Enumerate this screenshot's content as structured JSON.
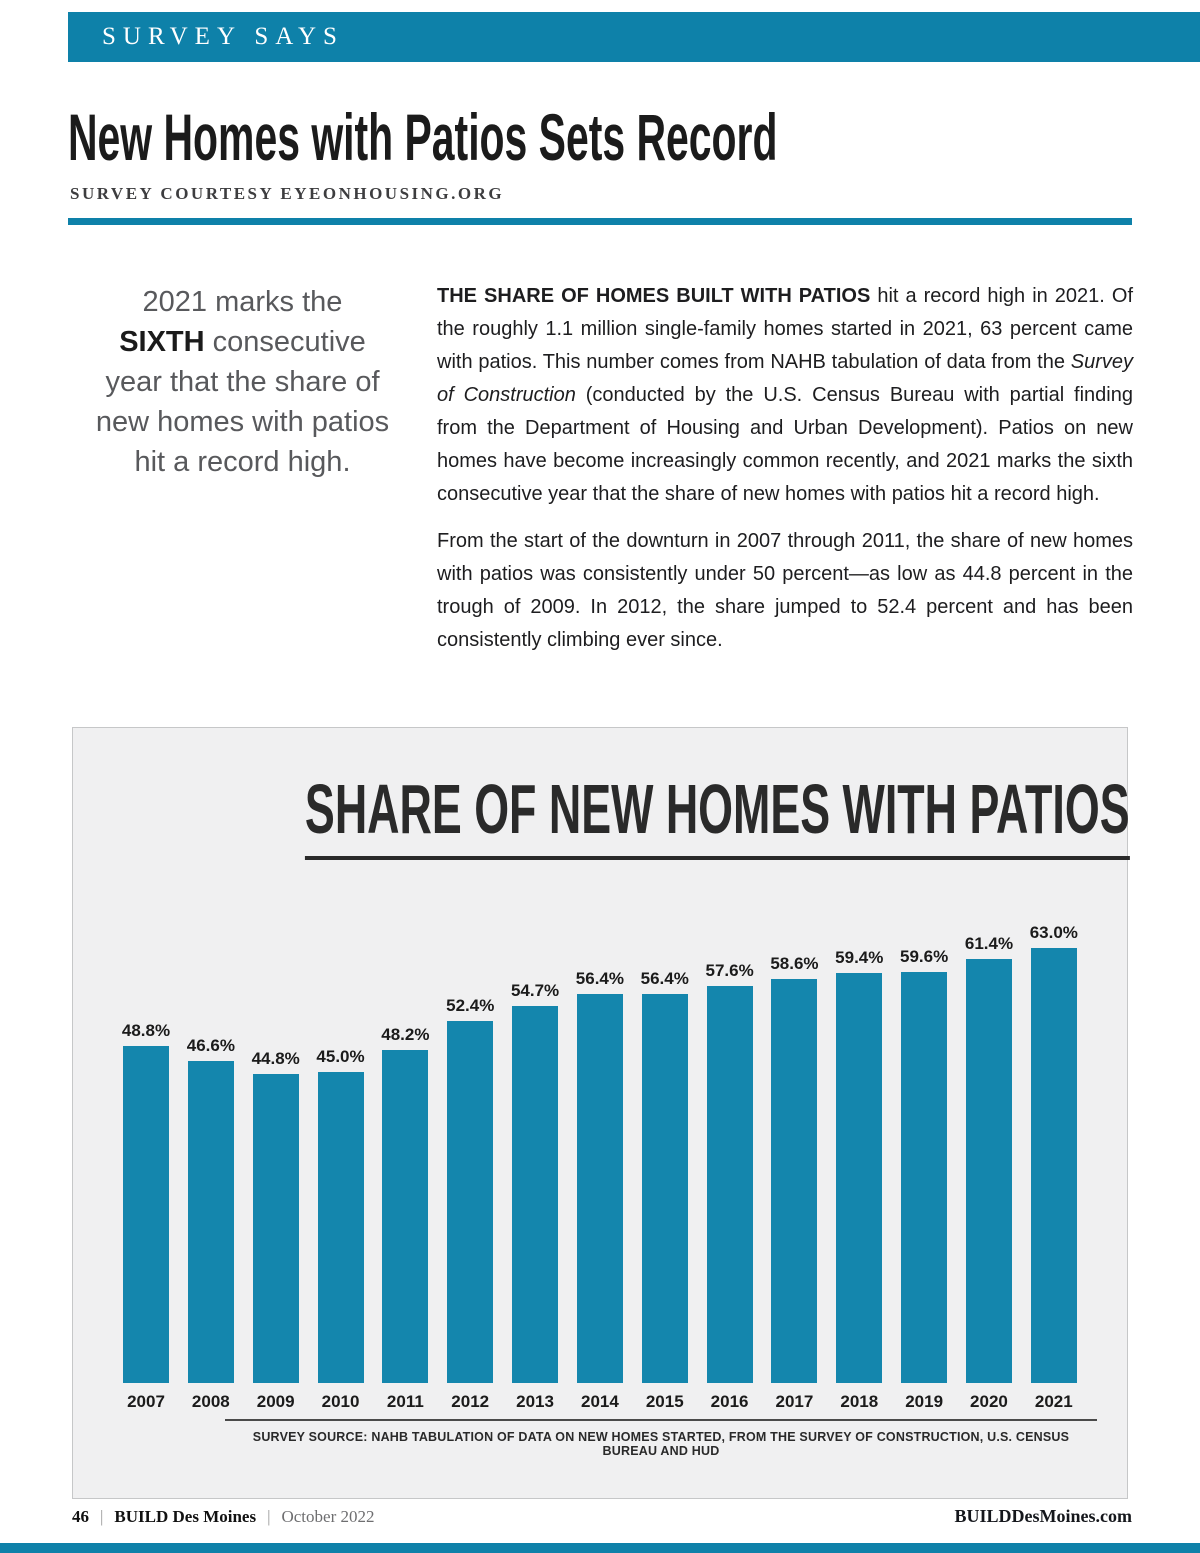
{
  "colors": {
    "accent": "#0e81a9",
    "chart_panel_bg": "#f0f0f1"
  },
  "page": {
    "banner": "SURVEY SAYS",
    "title": "New Homes with Patios Sets Record",
    "subtitle": "SURVEY COURTESY EYEONHOUSING.ORG",
    "pull_quote": {
      "line1": "2021 marks the",
      "line2_bold": "SIXTH",
      "line2_rest": " consecutive",
      "line3": "year that the share of",
      "line4": "new homes with patios",
      "line5": "hit a record high."
    },
    "body": {
      "p1_lead": "THE SHARE OF HOMES BUILT WITH PATIOS",
      "p1_seg1": " hit a record high in 2021. Of the roughly 1.1 million single-family homes started in 2021, 63 percent came with patios. This number comes from NAHB tabulation of data from the ",
      "p1_italic": "Survey of Construction",
      "p1_seg2": " (conducted by the U.S. Census Bureau with partial finding from the Department of Housing and Urban Development). Patios on new homes have become increasingly common recently, and 2021 marks the sixth consecutive year that the share of new homes with patios hit a record high.",
      "p2": "From the start of the downturn in 2007 through 2011, the share of new homes with patios was consistently under 50 percent—as low as 44.8 percent in the trough of 2009. In 2012, the share jumped to 52.4 percent and has been consistently climbing ever since."
    },
    "footer": {
      "page_number": "46",
      "separator": "|",
      "magazine": "BUILD Des Moines",
      "issue": "October 2022",
      "website": "BUILDDesMoines.com"
    }
  },
  "chart_data": {
    "type": "bar",
    "title": "SHARE OF NEW HOMES WITH PATIOS",
    "categories": [
      "2007",
      "2008",
      "2009",
      "2010",
      "2011",
      "2012",
      "2013",
      "2014",
      "2015",
      "2016",
      "2017",
      "2018",
      "2019",
      "2020",
      "2021"
    ],
    "values": [
      48.8,
      46.6,
      44.8,
      45.0,
      48.2,
      52.4,
      54.7,
      56.4,
      56.4,
      57.6,
      58.6,
      59.4,
      59.6,
      61.4,
      63.0
    ],
    "labels": [
      "48.8%",
      "46.6%",
      "44.8%",
      "45.0%",
      "48.2%",
      "52.4%",
      "54.7%",
      "56.4%",
      "56.4%",
      "57.6%",
      "58.6%",
      "59.4%",
      "59.6%",
      "61.4%",
      "63.0%"
    ],
    "xlabel": "",
    "ylabel": "",
    "ylim": [
      0,
      65
    ],
    "grid": false,
    "legend": false,
    "bar_color": "#1486ad",
    "source": "SURVEY SOURCE: NAHB TABULATION OF DATA ON NEW HOMES STARTED, FROM THE SURVEY OF CONSTRUCTION, U.S. CENSUS BUREAU AND HUD"
  }
}
